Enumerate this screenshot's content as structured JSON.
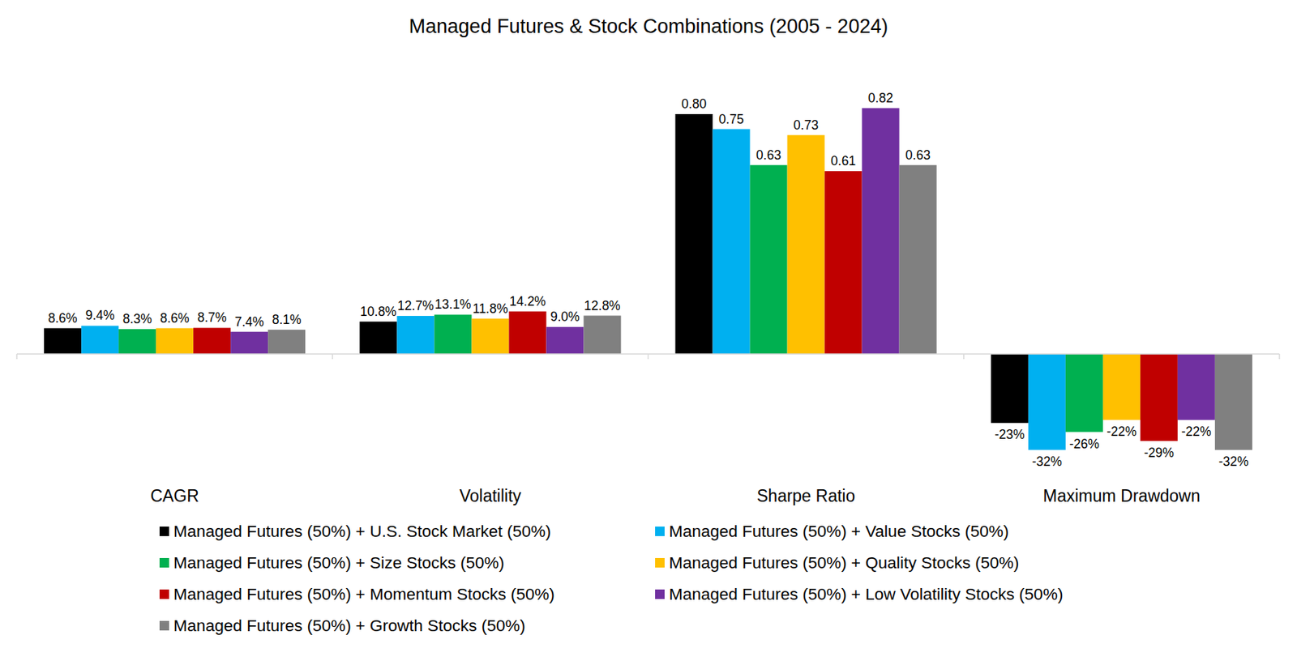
{
  "chart_data": {
    "type": "bar",
    "title": "Managed Futures & Stock Combinations (2005 - 2024)",
    "categories": [
      "CAGR",
      "Volatility",
      "Sharpe Ratio",
      "Maximum Drawdown"
    ],
    "ylim": [
      -0.4,
      0.9
    ],
    "tick_labels": false,
    "grid": false,
    "data_labels": true,
    "legend": "bottom",
    "series": [
      {
        "name": "Managed Futures (50%) + U.S. Stock Market (50%)",
        "color": "#000000",
        "values": [
          0.086,
          0.108,
          0.8,
          -0.23
        ],
        "value_labels": [
          "8.6%",
          "10.8%",
          "0.80",
          "-23%"
        ]
      },
      {
        "name": "Managed Futures (50%) + Value Stocks (50%)",
        "color": "#00B0F0",
        "values": [
          0.094,
          0.127,
          0.75,
          -0.32
        ],
        "value_labels": [
          "9.4%",
          "12.7%",
          "0.75",
          "-32%"
        ]
      },
      {
        "name": "Managed Futures (50%) + Size Stocks (50%)",
        "color": "#00B050",
        "values": [
          0.083,
          0.131,
          0.63,
          -0.26
        ],
        "value_labels": [
          "8.3%",
          "13.1%",
          "0.63",
          "-26%"
        ]
      },
      {
        "name": "Managed Futures (50%) + Quality Stocks (50%)",
        "color": "#FFC000",
        "values": [
          0.086,
          0.118,
          0.73,
          -0.22
        ],
        "value_labels": [
          "8.6%",
          "11.8%",
          "0.73",
          "-22%"
        ]
      },
      {
        "name": "Managed Futures (50%) + Momentum Stocks (50%)",
        "color": "#C00000",
        "values": [
          0.087,
          0.142,
          0.61,
          -0.29
        ],
        "value_labels": [
          "8.7%",
          "14.2%",
          "0.61",
          "-29%"
        ]
      },
      {
        "name": "Managed Futures (50%) + Low Volatility Stocks (50%)",
        "color": "#7030A0",
        "values": [
          0.074,
          0.09,
          0.82,
          -0.22
        ],
        "value_labels": [
          "7.4%",
          "9.0%",
          "0.82",
          "-22%"
        ]
      },
      {
        "name": "Managed Futures (50%) + Growth Stocks (50%)",
        "color": "#808080",
        "values": [
          0.081,
          0.128,
          0.63,
          -0.32
        ],
        "value_labels": [
          "8.1%",
          "12.8%",
          "0.63",
          "-32%"
        ]
      }
    ]
  }
}
